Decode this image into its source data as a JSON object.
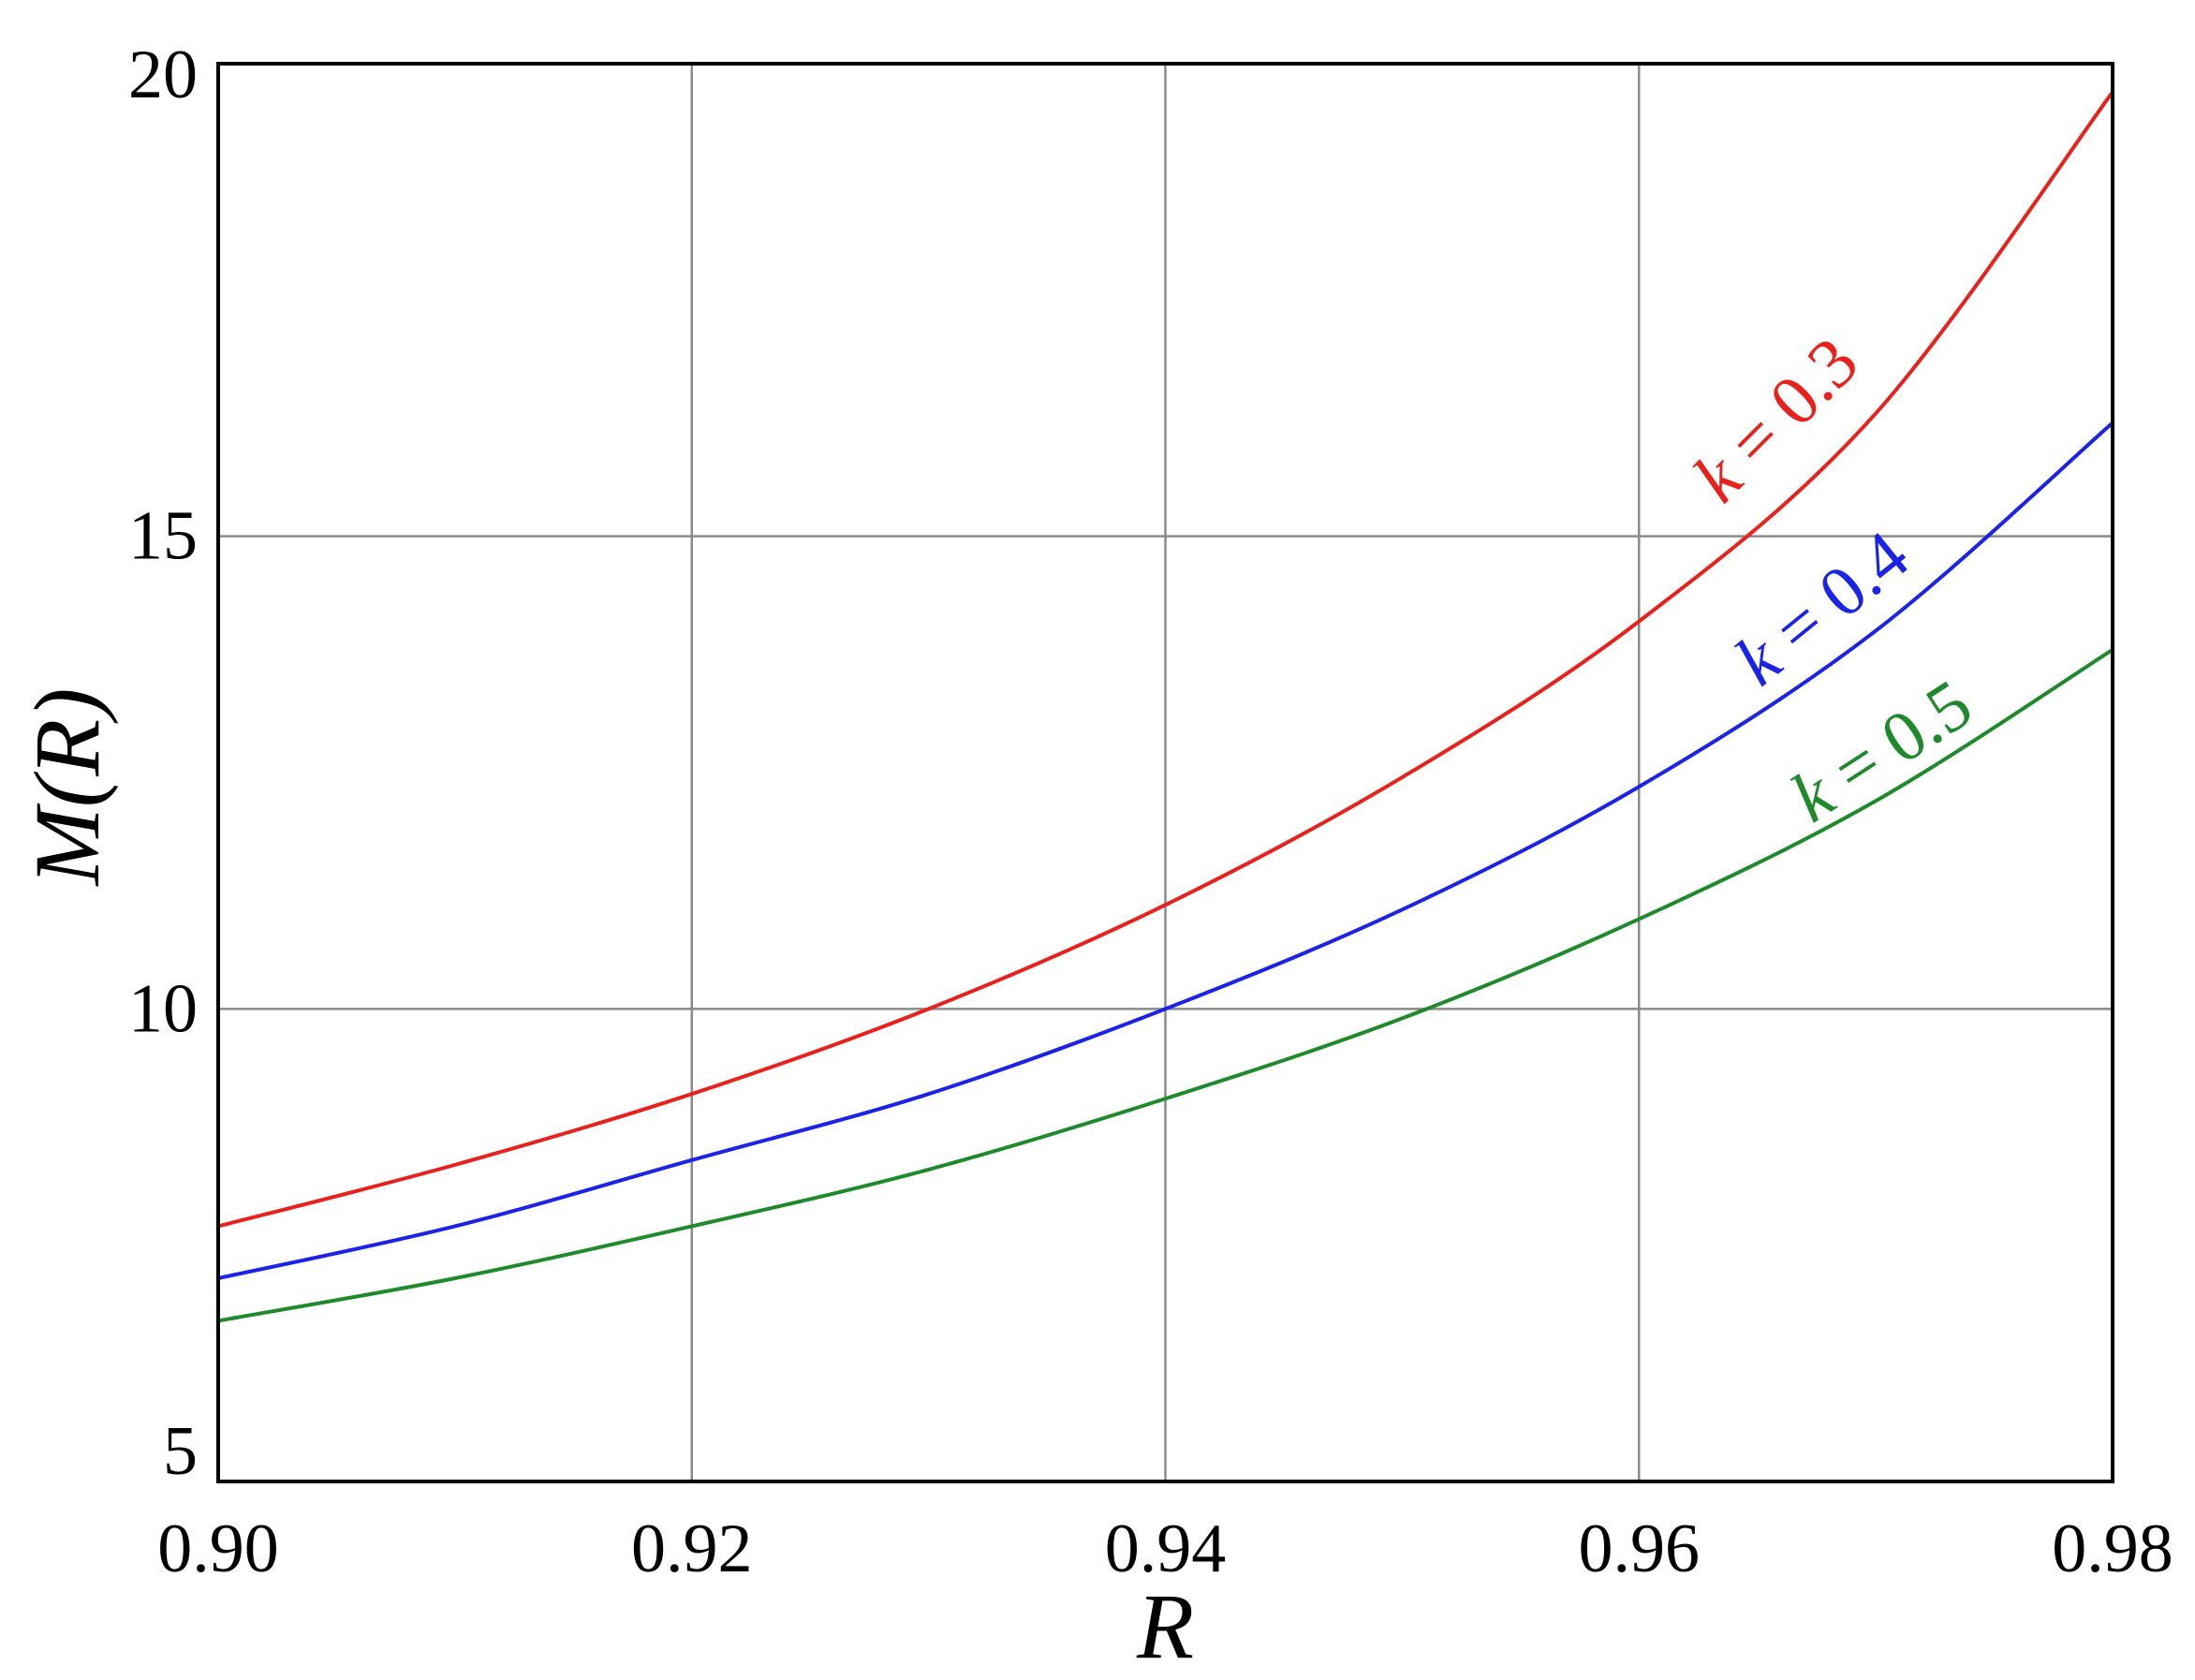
{
  "chart_data": {
    "type": "line",
    "xlabel": "R",
    "ylabel": "M(R)",
    "xlim": [
      0.9,
      0.98
    ],
    "ylim": [
      5,
      20
    ],
    "xticks": [
      0.9,
      0.92,
      0.94,
      0.96,
      0.98
    ],
    "xtick_labels": [
      "0.90",
      "0.92",
      "0.94",
      "0.96",
      "0.98"
    ],
    "yticks": [
      5,
      10,
      15,
      20
    ],
    "ytick_labels": [
      "5",
      "10",
      "15",
      "20"
    ],
    "grid": true,
    "legend": "inline labels along curves (upper right)",
    "series": [
      {
        "name": "k = 0.3",
        "label_var": "k",
        "label_rest": " = 0.3",
        "color": "#e8211c",
        "x": [
          0.9,
          0.91,
          0.92,
          0.93,
          0.94,
          0.95,
          0.96,
          0.97,
          0.98
        ],
        "y": [
          7.7,
          8.35,
          9.1,
          10.0,
          11.1,
          12.45,
          14.1,
          16.3,
          19.7
        ]
      },
      {
        "name": "k = 0.4",
        "label_var": "k",
        "label_rest": " = 0.4",
        "color": "#1a23e6",
        "x": [
          0.9,
          0.91,
          0.92,
          0.93,
          0.94,
          0.95,
          0.96,
          0.97,
          0.98
        ],
        "y": [
          7.15,
          7.7,
          8.4,
          9.1,
          10.0,
          11.05,
          12.35,
          14.0,
          16.2
        ]
      },
      {
        "name": "k = 0.5",
        "label_var": "k",
        "label_rest": " = 0.5",
        "color": "#1f8a2c",
        "x": [
          0.9,
          0.91,
          0.92,
          0.93,
          0.94,
          0.95,
          0.96,
          0.97,
          0.98
        ],
        "y": [
          6.7,
          7.15,
          7.7,
          8.3,
          9.05,
          9.9,
          10.95,
          12.2,
          13.8
        ]
      }
    ]
  }
}
